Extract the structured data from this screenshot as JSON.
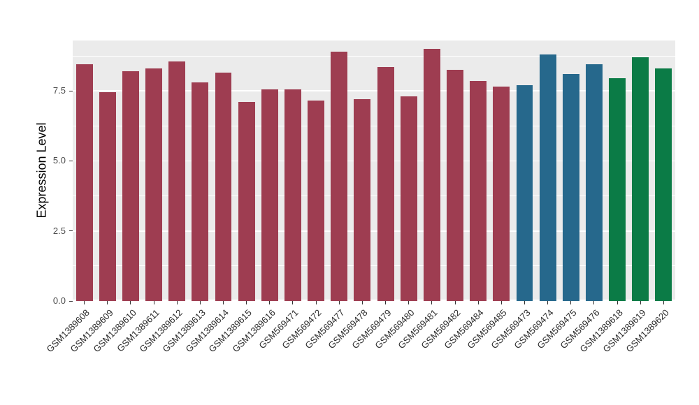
{
  "chart_data": {
    "type": "bar",
    "title": "",
    "xlabel": "",
    "ylabel": "Expression Level",
    "categories": [
      "GSM1389608",
      "GSM1389609",
      "GSM1389610",
      "GSM1389611",
      "GSM1389612",
      "GSM1389613",
      "GSM1389614",
      "GSM1389615",
      "GSM1389616",
      "GSM569471",
      "GSM569472",
      "GSM569477",
      "GSM569478",
      "GSM569479",
      "GSM569480",
      "GSM569481",
      "GSM569482",
      "GSM569484",
      "GSM569485",
      "GSM569473",
      "GSM569474",
      "GSM569475",
      "GSM569476",
      "GSM1389618",
      "GSM1389619",
      "GSM1389620"
    ],
    "values": [
      8.45,
      7.45,
      8.2,
      8.3,
      8.55,
      7.8,
      8.15,
      7.1,
      7.55,
      7.55,
      7.15,
      8.9,
      7.2,
      8.35,
      7.3,
      9.0,
      8.25,
      7.85,
      7.65,
      7.7,
      8.8,
      8.1,
      8.45,
      7.95,
      8.7,
      8.3
    ],
    "colors": [
      "#9E3D51",
      "#9E3D51",
      "#9E3D51",
      "#9E3D51",
      "#9E3D51",
      "#9E3D51",
      "#9E3D51",
      "#9E3D51",
      "#9E3D51",
      "#9E3D51",
      "#9E3D51",
      "#9E3D51",
      "#9E3D51",
      "#9E3D51",
      "#9E3D51",
      "#9E3D51",
      "#9E3D51",
      "#9E3D51",
      "#9E3D51",
      "#26688C",
      "#26688C",
      "#26688C",
      "#26688C",
      "#0B7B46",
      "#0B7B46",
      "#0B7B46"
    ],
    "group_colors": {
      "maroon": "#9E3D51",
      "teal": "#26688C",
      "green": "#0B7B46"
    },
    "ylim": [
      0,
      9.3
    ],
    "yticks": [
      0,
      2.5,
      5,
      7.5
    ],
    "ytick_labels": [
      "0.0",
      "2.5",
      "5.0",
      "7.5"
    ],
    "minor_gridlines": [
      1.25,
      3.75,
      6.25,
      8.75
    ],
    "panel_bg": "#EBEBEB",
    "grid_color": "#FFFFFF",
    "legend": "none",
    "grid": "on"
  }
}
